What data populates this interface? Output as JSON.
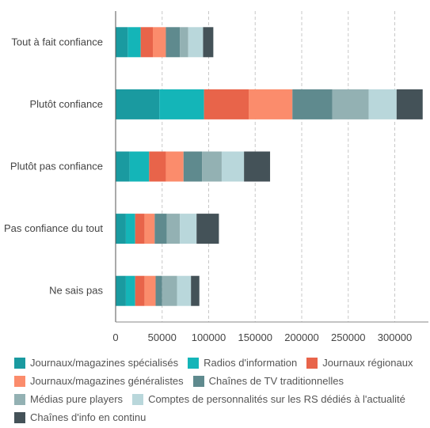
{
  "chart_data": {
    "type": "bar",
    "orientation": "horizontal",
    "stacked": true,
    "title": "",
    "xlabel": "",
    "ylabel": "",
    "xlim": [
      0,
      340000
    ],
    "xticks": [
      0,
      50000,
      100000,
      150000,
      200000,
      250000,
      300000
    ],
    "grid": "vertical-dashed",
    "legend_position": "bottom",
    "categories": [
      "Tout à fait confiance",
      "Plutôt confiance",
      "Plutôt pas confiance",
      "Pas confiance du tout",
      "Ne sais pas"
    ],
    "series": [
      {
        "name": "Journaux/magazines spécialisés",
        "color": "#1a9aa0",
        "values": [
          13000,
          47000,
          15000,
          11000,
          11000
        ]
      },
      {
        "name": "Radios d'information",
        "color": "#14b5b8",
        "values": [
          14000,
          48000,
          21000,
          10000,
          10000
        ]
      },
      {
        "name": "Journaux régionaux",
        "color": "#e8644a",
        "values": [
          13000,
          48000,
          18000,
          10000,
          10000
        ]
      },
      {
        "name": "Journaux/magazines généralistes",
        "color": "#fb8c6c",
        "values": [
          14000,
          47000,
          19000,
          11000,
          12000
        ]
      },
      {
        "name": "Chaînes de TV traditionnelles",
        "color": "#5f8a8e",
        "values": [
          15000,
          43000,
          20000,
          13000,
          7000
        ]
      },
      {
        "name": "Médias pure players",
        "color": "#93b1b3",
        "values": [
          9000,
          39000,
          21000,
          14000,
          16000
        ]
      },
      {
        "name": "Comptes de personnalités sur les RS dédiés à l'actualité",
        "color": "#b9d7db",
        "values": [
          16000,
          30000,
          24000,
          18000,
          15000
        ]
      },
      {
        "name": "Chaînes d'info en continu",
        "color": "#445258",
        "values": [
          11000,
          28000,
          28000,
          24000,
          9000
        ]
      }
    ]
  }
}
